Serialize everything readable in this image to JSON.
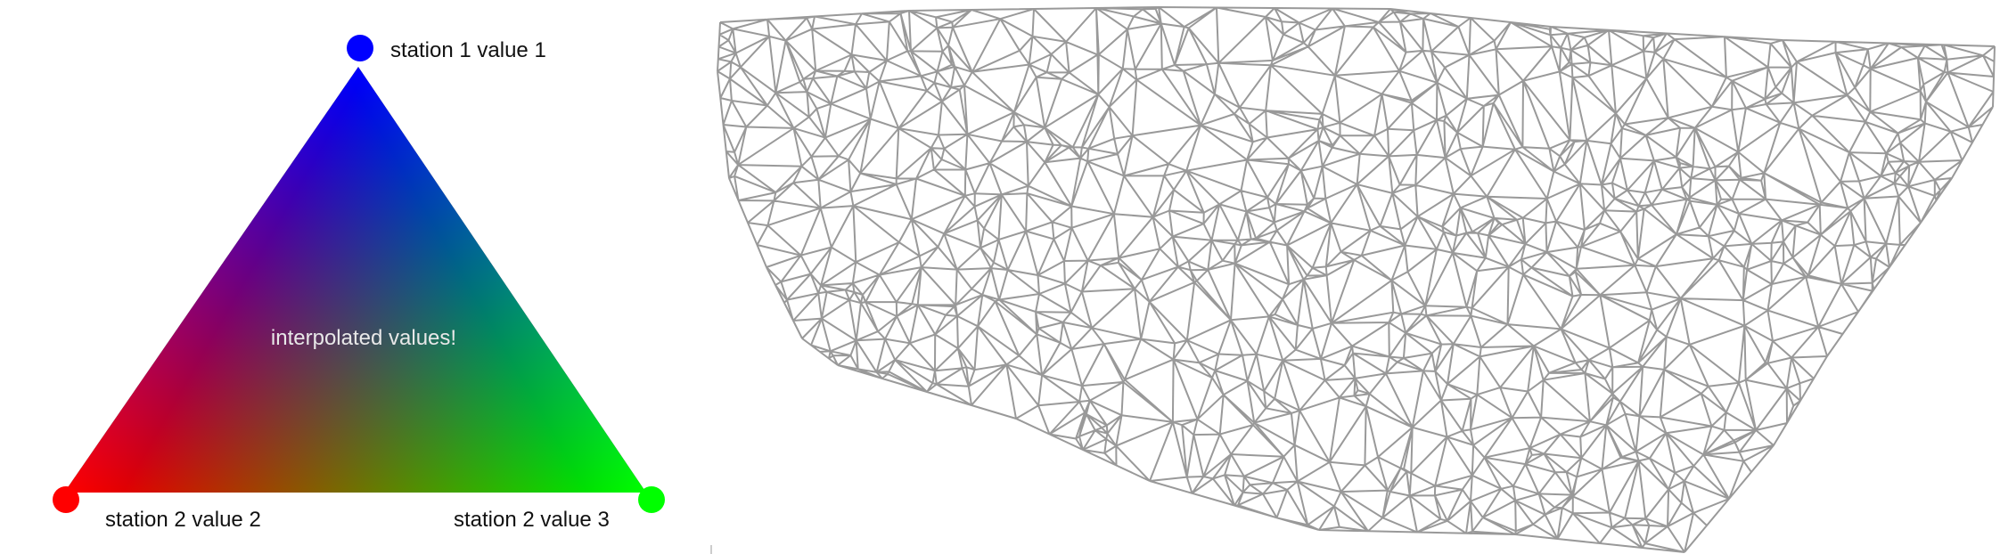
{
  "left_diagram": {
    "vertices": [
      {
        "label": "station 1 value 1",
        "color": "#0000ff"
      },
      {
        "label": "station 2 value 2",
        "color": "#ff0000"
      },
      {
        "label": "station 2 value 3",
        "color": "#00ff00"
      }
    ],
    "center_label": "interpolated values!",
    "center_label_color": "#e8e8e8"
  },
  "right_diagram": {
    "mesh_color": "#999999"
  }
}
